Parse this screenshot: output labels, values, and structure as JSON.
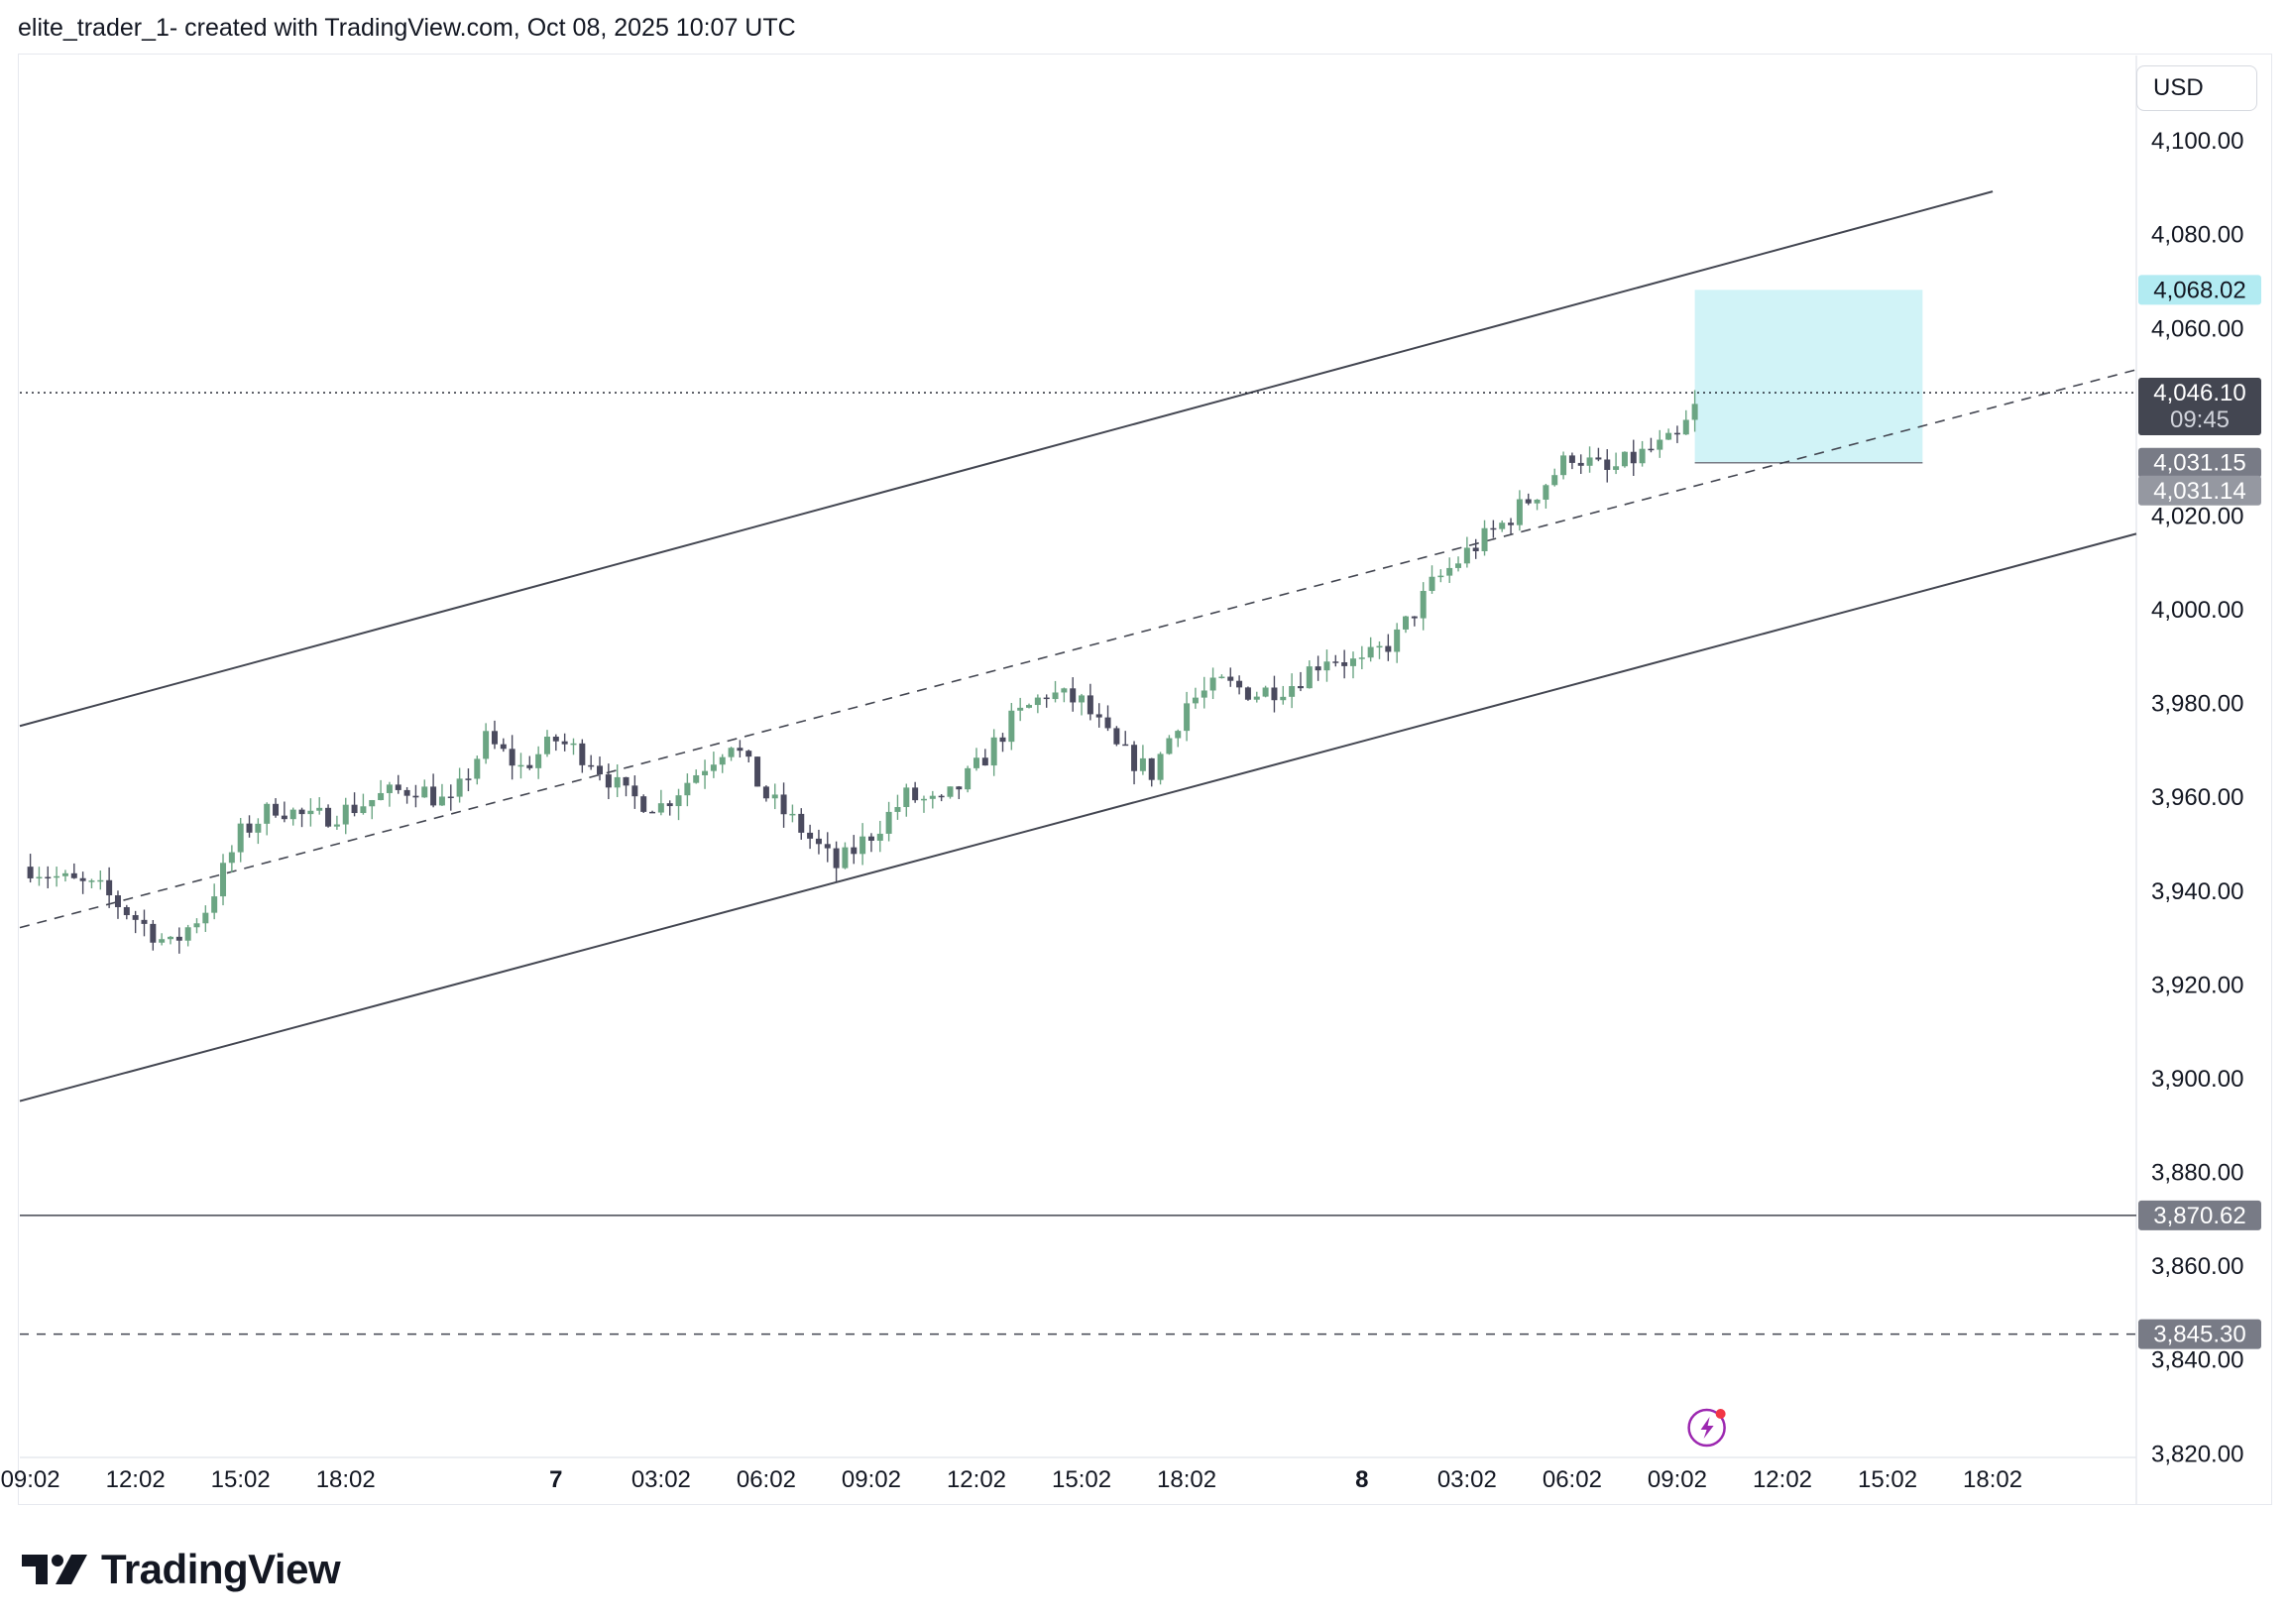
{
  "header": {
    "text": "elite_trader_1- created with TradingView.com, Oct 08, 2025 10:07 UTC"
  },
  "currency": "USD",
  "brand": {
    "name": "TradingView"
  },
  "chart_data": {
    "type": "candlestick",
    "y_axis": {
      "ticks": [
        3820,
        3840,
        3860,
        3880,
        3900,
        3920,
        3940,
        3960,
        3980,
        4000,
        4020,
        4040,
        4060,
        4080,
        4100
      ],
      "tick_labels": [
        "3,820.00",
        "3,840.00",
        "3,860.00",
        "3,880.00",
        "3,900.00",
        "3,920.00",
        "3,940.00",
        "3,960.00",
        "3,980.00",
        "4,000.00",
        "4,020.00",
        "4,040.00",
        "4,060.00",
        "4,080.00",
        "4,100.00"
      ],
      "range": [
        3819,
        4118
      ]
    },
    "x_axis": {
      "labels": [
        {
          "text": "09:02",
          "t": 0,
          "bold": false
        },
        {
          "text": "12:02",
          "t": 3,
          "bold": false
        },
        {
          "text": "15:02",
          "t": 6,
          "bold": false
        },
        {
          "text": "18:02",
          "t": 9,
          "bold": false
        },
        {
          "text": "7",
          "t": 15,
          "bold": true
        },
        {
          "text": "03:02",
          "t": 18,
          "bold": false
        },
        {
          "text": "06:02",
          "t": 21,
          "bold": false
        },
        {
          "text": "09:02",
          "t": 24,
          "bold": false
        },
        {
          "text": "12:02",
          "t": 27,
          "bold": false
        },
        {
          "text": "15:02",
          "t": 30,
          "bold": false
        },
        {
          "text": "18:02",
          "t": 33,
          "bold": false
        },
        {
          "text": "8",
          "t": 38,
          "bold": true
        },
        {
          "text": "03:02",
          "t": 41,
          "bold": false
        },
        {
          "text": "06:02",
          "t": 44,
          "bold": false
        },
        {
          "text": "09:02",
          "t": 47,
          "bold": false
        },
        {
          "text": "12:02",
          "t": 50,
          "bold": false
        },
        {
          "text": "15:02",
          "t": 53,
          "bold": false
        },
        {
          "text": "18:02",
          "t": 56,
          "bold": false
        }
      ],
      "range": [
        -0.3,
        60.1
      ]
    },
    "price_path": [
      [
        0,
        3945
      ],
      [
        1,
        3942
      ],
      [
        2,
        3940
      ],
      [
        3,
        3934
      ],
      [
        4,
        3928
      ],
      [
        5,
        3936
      ],
      [
        6,
        3952
      ],
      [
        7,
        3958
      ],
      [
        8,
        3955
      ],
      [
        9,
        3957
      ],
      [
        10,
        3960
      ],
      [
        11,
        3962
      ],
      [
        12,
        3958
      ],
      [
        13,
        3972
      ],
      [
        14,
        3966
      ],
      [
        15,
        3972
      ],
      [
        16,
        3968
      ],
      [
        17,
        3960
      ],
      [
        18,
        3958
      ],
      [
        19,
        3965
      ],
      [
        20,
        3972
      ],
      [
        21,
        3960
      ],
      [
        22,
        3953
      ],
      [
        23,
        3945
      ],
      [
        24,
        3952
      ],
      [
        25,
        3960
      ],
      [
        26,
        3958
      ],
      [
        27,
        3966
      ],
      [
        28,
        3976
      ],
      [
        29,
        3982
      ],
      [
        30,
        3980
      ],
      [
        31,
        3970
      ],
      [
        32,
        3965
      ],
      [
        33,
        3980
      ],
      [
        34,
        3984
      ],
      [
        35,
        3982
      ],
      [
        36,
        3984
      ],
      [
        37,
        3990
      ],
      [
        38,
        3988
      ],
      [
        39,
        3994
      ],
      [
        40,
        4005
      ],
      [
        41,
        4012
      ],
      [
        42,
        4018
      ],
      [
        43,
        4025
      ],
      [
        44,
        4033
      ],
      [
        45,
        4029
      ],
      [
        46,
        4033
      ],
      [
        47,
        4036
      ],
      [
        47.6,
        4044
      ]
    ],
    "levels": [
      {
        "price": 4068.02,
        "label": "4,068.02",
        "style": "zone-top",
        "color": "#b2ebf2"
      },
      {
        "price": 4046.1,
        "label": "4,046.10",
        "sublabel": "09:45",
        "style": "dotted",
        "color": "#434651"
      },
      {
        "price": 4031.15,
        "label": "4,031.15",
        "style": "zone-bottom",
        "color": "#787b86"
      },
      {
        "price": 4031.14,
        "label": "4,031.14",
        "style": "none",
        "color": "#9598a1"
      },
      {
        "price": 3870.62,
        "label": "3,870.62",
        "style": "solid",
        "color": "#787b86"
      },
      {
        "price": 3845.3,
        "label": "3,845.30",
        "style": "dashed",
        "color": "#787b86"
      }
    ],
    "channel": {
      "upper": {
        "start": [
          -0.3,
          3975
        ],
        "end": [
          56.0,
          4089
        ]
      },
      "middle": {
        "start": [
          -0.3,
          3932
        ],
        "end": [
          60.1,
          4051
        ]
      },
      "lower": {
        "start": [
          -0.3,
          3895
        ],
        "end": [
          60.1,
          4016
        ]
      }
    },
    "zone": {
      "t_start": 47.5,
      "t_end": 54.0,
      "top": 4068.02,
      "bottom": 4031.15,
      "color": "#b2ebf2"
    },
    "colors": {
      "up": "#6ba583",
      "down": "#4a4a5e",
      "axis_text": "#131722",
      "grid_border": "#e6e8ee",
      "lightning": "#9c27b0"
    },
    "event_icon": {
      "name": "lightning-icon",
      "t": 47.5
    }
  }
}
